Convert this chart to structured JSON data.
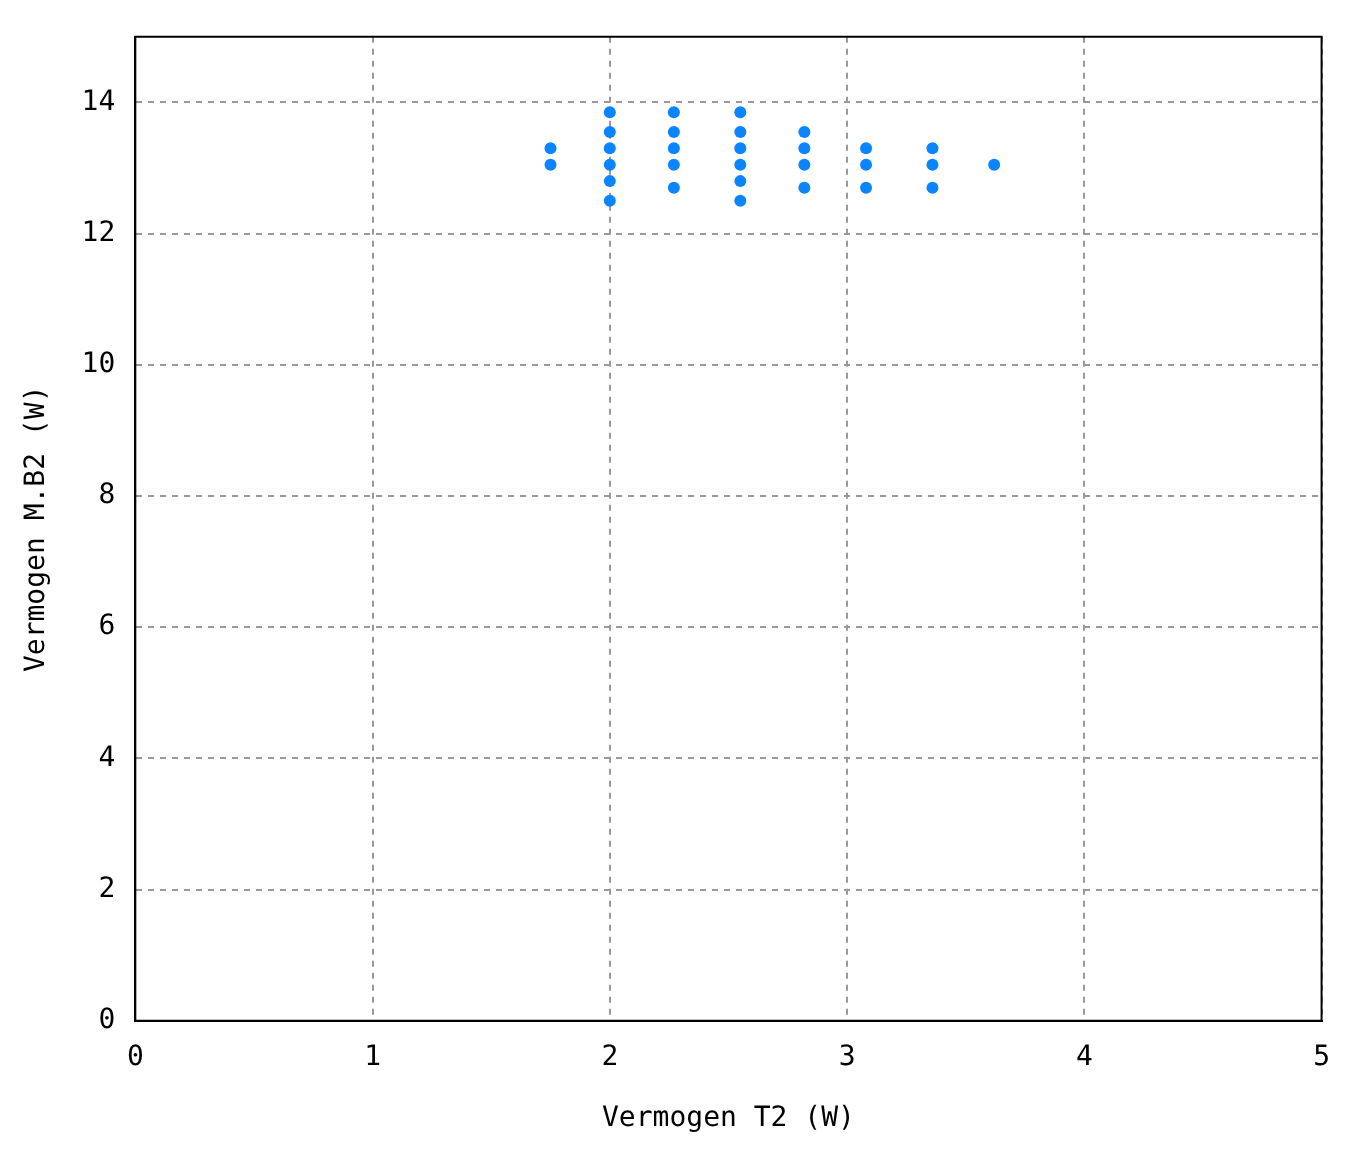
{
  "chart_data": {
    "type": "scatter",
    "xlabel": "Vermogen T2 (W)",
    "ylabel": "Vermogen M.B2 (W)",
    "xlim": [
      0,
      5
    ],
    "xticks": [
      0,
      1,
      2,
      3,
      4,
      5
    ],
    "ylim": [
      0,
      15
    ],
    "yticks": [
      0,
      2,
      4,
      6,
      8,
      10,
      12,
      14
    ],
    "grid": true,
    "marker": "circle",
    "series": [
      {
        "color": "#0a84ff",
        "x": [
          1.75,
          1.75,
          2,
          2,
          2,
          2,
          2,
          2,
          2.27,
          2.27,
          2.27,
          2.27,
          2.27,
          2.55,
          2.55,
          2.55,
          2.55,
          2.55,
          2.55,
          2.82,
          2.82,
          2.82,
          2.82,
          3.08,
          3.08,
          3.08,
          3.36,
          3.36,
          3.36,
          3.62
        ],
        "values": [
          13.3,
          13.05,
          13.85,
          13.55,
          13.3,
          13.05,
          12.8,
          12.5,
          13.85,
          13.55,
          13.3,
          13.05,
          12.7,
          13.85,
          13.55,
          13.3,
          13.05,
          12.8,
          12.5,
          13.55,
          13.3,
          13.05,
          12.7,
          13.3,
          13.05,
          12.7,
          13.3,
          13.05,
          12.7,
          13.05
        ]
      }
    ]
  }
}
